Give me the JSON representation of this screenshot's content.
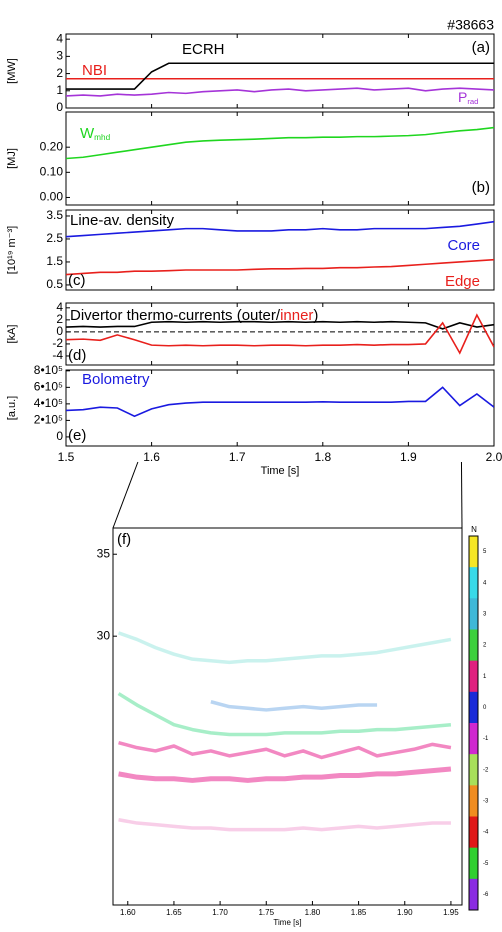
{
  "shot": "#38663",
  "chart_data": [
    {
      "type": "line",
      "tag": "(a)",
      "ylabel": "[MW]",
      "ylim": [
        0,
        4.3
      ],
      "yticks": [
        0,
        1,
        2,
        3,
        4
      ],
      "x": [
        1.5,
        1.52,
        1.54,
        1.56,
        1.58,
        1.6,
        1.62,
        1.64,
        1.66,
        1.68,
        1.7,
        1.72,
        1.74,
        1.76,
        1.78,
        1.8,
        1.82,
        1.84,
        1.86,
        1.88,
        1.9,
        1.92,
        1.94,
        1.96,
        1.98,
        2.0
      ],
      "series": [
        {
          "name": "NBI",
          "color": "#e8201c",
          "values": [
            1.7,
            1.7,
            1.7,
            1.7,
            1.7,
            1.7,
            1.7,
            1.7,
            1.7,
            1.7,
            1.7,
            1.7,
            1.7,
            1.7,
            1.7,
            1.7,
            1.7,
            1.7,
            1.7,
            1.7,
            1.7,
            1.7,
            1.7,
            1.7,
            1.7,
            1.7
          ]
        },
        {
          "name": "ECRH",
          "color": "#000000",
          "values": [
            1.1,
            1.1,
            1.1,
            1.1,
            1.1,
            2.1,
            2.6,
            2.6,
            2.6,
            2.6,
            2.6,
            2.6,
            2.6,
            2.6,
            2.6,
            2.6,
            2.6,
            2.6,
            2.6,
            2.6,
            2.6,
            2.6,
            2.6,
            2.6,
            2.6,
            2.6
          ]
        },
        {
          "name": "P",
          "name_sub": "rad",
          "color": "#a534d8",
          "values": [
            0.7,
            0.75,
            0.7,
            0.8,
            0.75,
            0.8,
            0.9,
            0.85,
            0.95,
            1.0,
            1.05,
            0.95,
            1.05,
            1.1,
            1.0,
            1.05,
            1.1,
            1.15,
            1.05,
            1.1,
            1.15,
            1.0,
            1.1,
            1.15,
            1.1,
            1.05
          ]
        }
      ]
    },
    {
      "type": "line",
      "tag": "(b)",
      "ylabel": "[MJ]",
      "ylim": [
        -0.03,
        0.34
      ],
      "yticks": [
        {
          "value": 0,
          "label": "0.00"
        },
        {
          "value": 0.1,
          "label": "0.10"
        },
        {
          "value": 0.2,
          "label": "0.20"
        }
      ],
      "x": [
        1.5,
        1.52,
        1.54,
        1.56,
        1.58,
        1.6,
        1.62,
        1.64,
        1.66,
        1.68,
        1.7,
        1.72,
        1.74,
        1.76,
        1.78,
        1.8,
        1.82,
        1.84,
        1.86,
        1.88,
        1.9,
        1.92,
        1.94,
        1.96,
        1.98,
        2.0
      ],
      "series": [
        {
          "name": "W",
          "name_sub": "mhd",
          "color": "#1fd61f",
          "values": [
            0.155,
            0.16,
            0.17,
            0.18,
            0.19,
            0.2,
            0.21,
            0.22,
            0.225,
            0.228,
            0.23,
            0.232,
            0.235,
            0.238,
            0.238,
            0.24,
            0.24,
            0.242,
            0.242,
            0.244,
            0.246,
            0.25,
            0.258,
            0.265,
            0.27,
            0.278
          ]
        }
      ]
    },
    {
      "type": "line",
      "tag": "(c)",
      "title": "Line-av. density",
      "ylabel": "[10¹⁹ m⁻³]",
      "ylim": [
        0.28,
        3.76
      ],
      "yticks": [
        0.5,
        1.5,
        2.5,
        3.5
      ],
      "x": [
        1.5,
        1.52,
        1.54,
        1.56,
        1.58,
        1.6,
        1.62,
        1.64,
        1.66,
        1.68,
        1.7,
        1.72,
        1.74,
        1.76,
        1.78,
        1.8,
        1.82,
        1.84,
        1.86,
        1.88,
        1.9,
        1.92,
        1.94,
        1.96,
        1.98,
        2.0
      ],
      "series": [
        {
          "name": "Core",
          "color": "#1a1ae0",
          "values": [
            2.6,
            2.65,
            2.7,
            2.75,
            2.8,
            2.85,
            2.9,
            2.95,
            2.95,
            2.9,
            2.85,
            2.85,
            2.85,
            2.9,
            2.9,
            2.95,
            2.9,
            2.9,
            2.95,
            2.95,
            2.95,
            2.95,
            3.0,
            3.05,
            3.15,
            3.25
          ]
        },
        {
          "name": "Edge",
          "color": "#e8201c",
          "values": [
            0.95,
            1.0,
            1.05,
            1.05,
            1.1,
            1.1,
            1.12,
            1.15,
            1.15,
            1.15,
            1.15,
            1.18,
            1.2,
            1.2,
            1.22,
            1.22,
            1.25,
            1.25,
            1.28,
            1.3,
            1.35,
            1.4,
            1.45,
            1.5,
            1.55,
            1.6
          ]
        }
      ]
    },
    {
      "type": "line",
      "tag": "(d)",
      "title_parts": [
        "Divertor thermo-currents (outer/",
        "inner",
        ")"
      ],
      "ylabel": "[kA]",
      "ylim": [
        -5.5,
        4.8
      ],
      "yticks": [
        -4,
        -2,
        0,
        2,
        4
      ],
      "reference_line": 0,
      "x": [
        1.5,
        1.52,
        1.54,
        1.56,
        1.58,
        1.6,
        1.62,
        1.64,
        1.66,
        1.68,
        1.7,
        1.72,
        1.74,
        1.76,
        1.78,
        1.8,
        1.82,
        1.84,
        1.86,
        1.88,
        1.9,
        1.92,
        1.94,
        1.96,
        1.98,
        2.0
      ],
      "series": [
        {
          "color": "#000000",
          "values": [
            0.8,
            0.9,
            0.8,
            0.9,
            0.9,
            1.6,
            1.7,
            1.6,
            1.7,
            1.6,
            1.7,
            1.7,
            1.6,
            1.7,
            1.6,
            1.7,
            1.6,
            1.7,
            1.6,
            1.7,
            1.6,
            1.5,
            0.5,
            1.5,
            0.8,
            1.2
          ]
        },
        {
          "color": "#e8201c",
          "values": [
            -1.3,
            -1.2,
            -1.4,
            -0.5,
            -1.3,
            -2.2,
            -2.3,
            -2.2,
            -2.3,
            -2.2,
            -2.2,
            -2.3,
            -2.2,
            -2.2,
            -2.3,
            -2.2,
            -2.2,
            -2.1,
            -2.2,
            -2.1,
            -2.1,
            -2.0,
            1.5,
            -3.5,
            2.8,
            -2.5
          ]
        }
      ]
    },
    {
      "type": "line",
      "tag": "(e)",
      "ylabel": "[a.u.]",
      "ylim": [
        -110000,
        810000
      ],
      "yticks": [
        0,
        {
          "value": 200000,
          "label": "2•10⁵"
        },
        {
          "value": 400000,
          "label": "4•10⁵"
        },
        {
          "value": 600000,
          "label": "6•10⁵"
        },
        {
          "value": 800000,
          "label": "8•10⁵"
        }
      ],
      "xlim": [
        1.5,
        2.0
      ],
      "xticks": [
        1.5,
        1.6,
        1.7,
        1.8,
        1.9,
        {
          "value": 2,
          "label": "2.0"
        }
      ],
      "xlabel": "Time [s]",
      "x": [
        1.5,
        1.52,
        1.54,
        1.56,
        1.58,
        1.6,
        1.62,
        1.64,
        1.66,
        1.68,
        1.7,
        1.72,
        1.74,
        1.76,
        1.78,
        1.8,
        1.82,
        1.84,
        1.86,
        1.88,
        1.9,
        1.92,
        1.94,
        1.96,
        1.98,
        2.0
      ],
      "series": [
        {
          "name": "Bolometry",
          "color": "#1a1ae0",
          "values": [
            320000,
            330000,
            360000,
            350000,
            250000,
            340000,
            390000,
            410000,
            420000,
            420000,
            420000,
            420000,
            420000,
            420000,
            420000,
            425000,
            420000,
            420000,
            420000,
            420000,
            430000,
            430000,
            600000,
            380000,
            520000,
            360000
          ]
        }
      ]
    },
    {
      "type": "spectrogram",
      "tag": "(f)",
      "xlabel": "Time [s]",
      "xlim": [
        1.584,
        1.962
      ],
      "xticks": [
        {
          "value": 1.6,
          "label": "1.60"
        },
        1.65,
        {
          "value": 1.7,
          "label": "1.70"
        },
        1.75,
        {
          "value": 1.8,
          "label": "1.80"
        },
        1.85,
        {
          "value": 1.9,
          "label": "1.90"
        },
        1.95
      ],
      "ylim": [
        13.6,
        36.6
      ],
      "yticks": [
        30,
        35
      ],
      "x": [
        1.59,
        1.61,
        1.63,
        1.65,
        1.67,
        1.69,
        1.71,
        1.73,
        1.75,
        1.77,
        1.79,
        1.81,
        1.83,
        1.85,
        1.87,
        1.89,
        1.91,
        1.93,
        1.95
      ],
      "series": [
        {
          "color": "#e8268f",
          "values": [
            21.6,
            21.4,
            21.3,
            21.3,
            21.2,
            21.3,
            21.3,
            21.2,
            21.3,
            21.3,
            21.4,
            21.4,
            21.5,
            21.5,
            21.6,
            21.6,
            21.7,
            21.8,
            21.9
          ]
        },
        {
          "color": "#e8268f",
          "values": [
            23.5,
            23.2,
            23.0,
            23.3,
            22.8,
            23.0,
            22.7,
            22.9,
            23.1,
            22.7,
            23.0,
            22.6,
            22.9,
            23.2,
            22.7,
            22.9,
            23.1,
            23.4,
            23.2
          ]
        },
        {
          "color": "#5fe09a",
          "values": [
            26.5,
            25.8,
            25.2,
            24.6,
            24.3,
            24.1,
            24.0,
            24.0,
            24.0,
            24.1,
            24.1,
            24.1,
            24.2,
            24.2,
            24.3,
            24.3,
            24.4,
            24.5,
            24.6
          ]
        },
        {
          "color": "#7fb2e8",
          "values": [
            null,
            null,
            null,
            null,
            null,
            26.0,
            25.7,
            25.6,
            25.5,
            25.6,
            25.7,
            25.6,
            25.7,
            25.8,
            25.8,
            null,
            null,
            null,
            null
          ]
        },
        {
          "color": "#9fe8e0",
          "values": [
            30.2,
            29.8,
            29.3,
            28.9,
            28.6,
            28.5,
            28.4,
            28.5,
            28.5,
            28.6,
            28.7,
            28.8,
            28.8,
            28.9,
            29.0,
            29.2,
            29.4,
            29.6,
            29.8
          ]
        },
        {
          "color": "#f2a6d6",
          "values": [
            18.8,
            18.6,
            18.5,
            18.4,
            18.3,
            18.3,
            18.2,
            18.2,
            18.2,
            18.2,
            18.3,
            18.2,
            18.3,
            18.4,
            18.3,
            18.4,
            18.5,
            18.6,
            18.6
          ]
        }
      ],
      "colorbar": {
        "label": "N",
        "ticks": [
          5,
          4,
          3,
          2,
          1,
          0,
          -1,
          -2,
          -3,
          -4,
          -5,
          -6
        ],
        "colors": [
          "#f5e625",
          "#38d9e8",
          "#3fb8d8",
          "#3ccf3c",
          "#e0207f",
          "#1a2ad8",
          "#d028d0",
          "#a8e05a",
          "#f08c20",
          "#e01818",
          "#30d030",
          "#8a2be2"
        ]
      }
    }
  ]
}
